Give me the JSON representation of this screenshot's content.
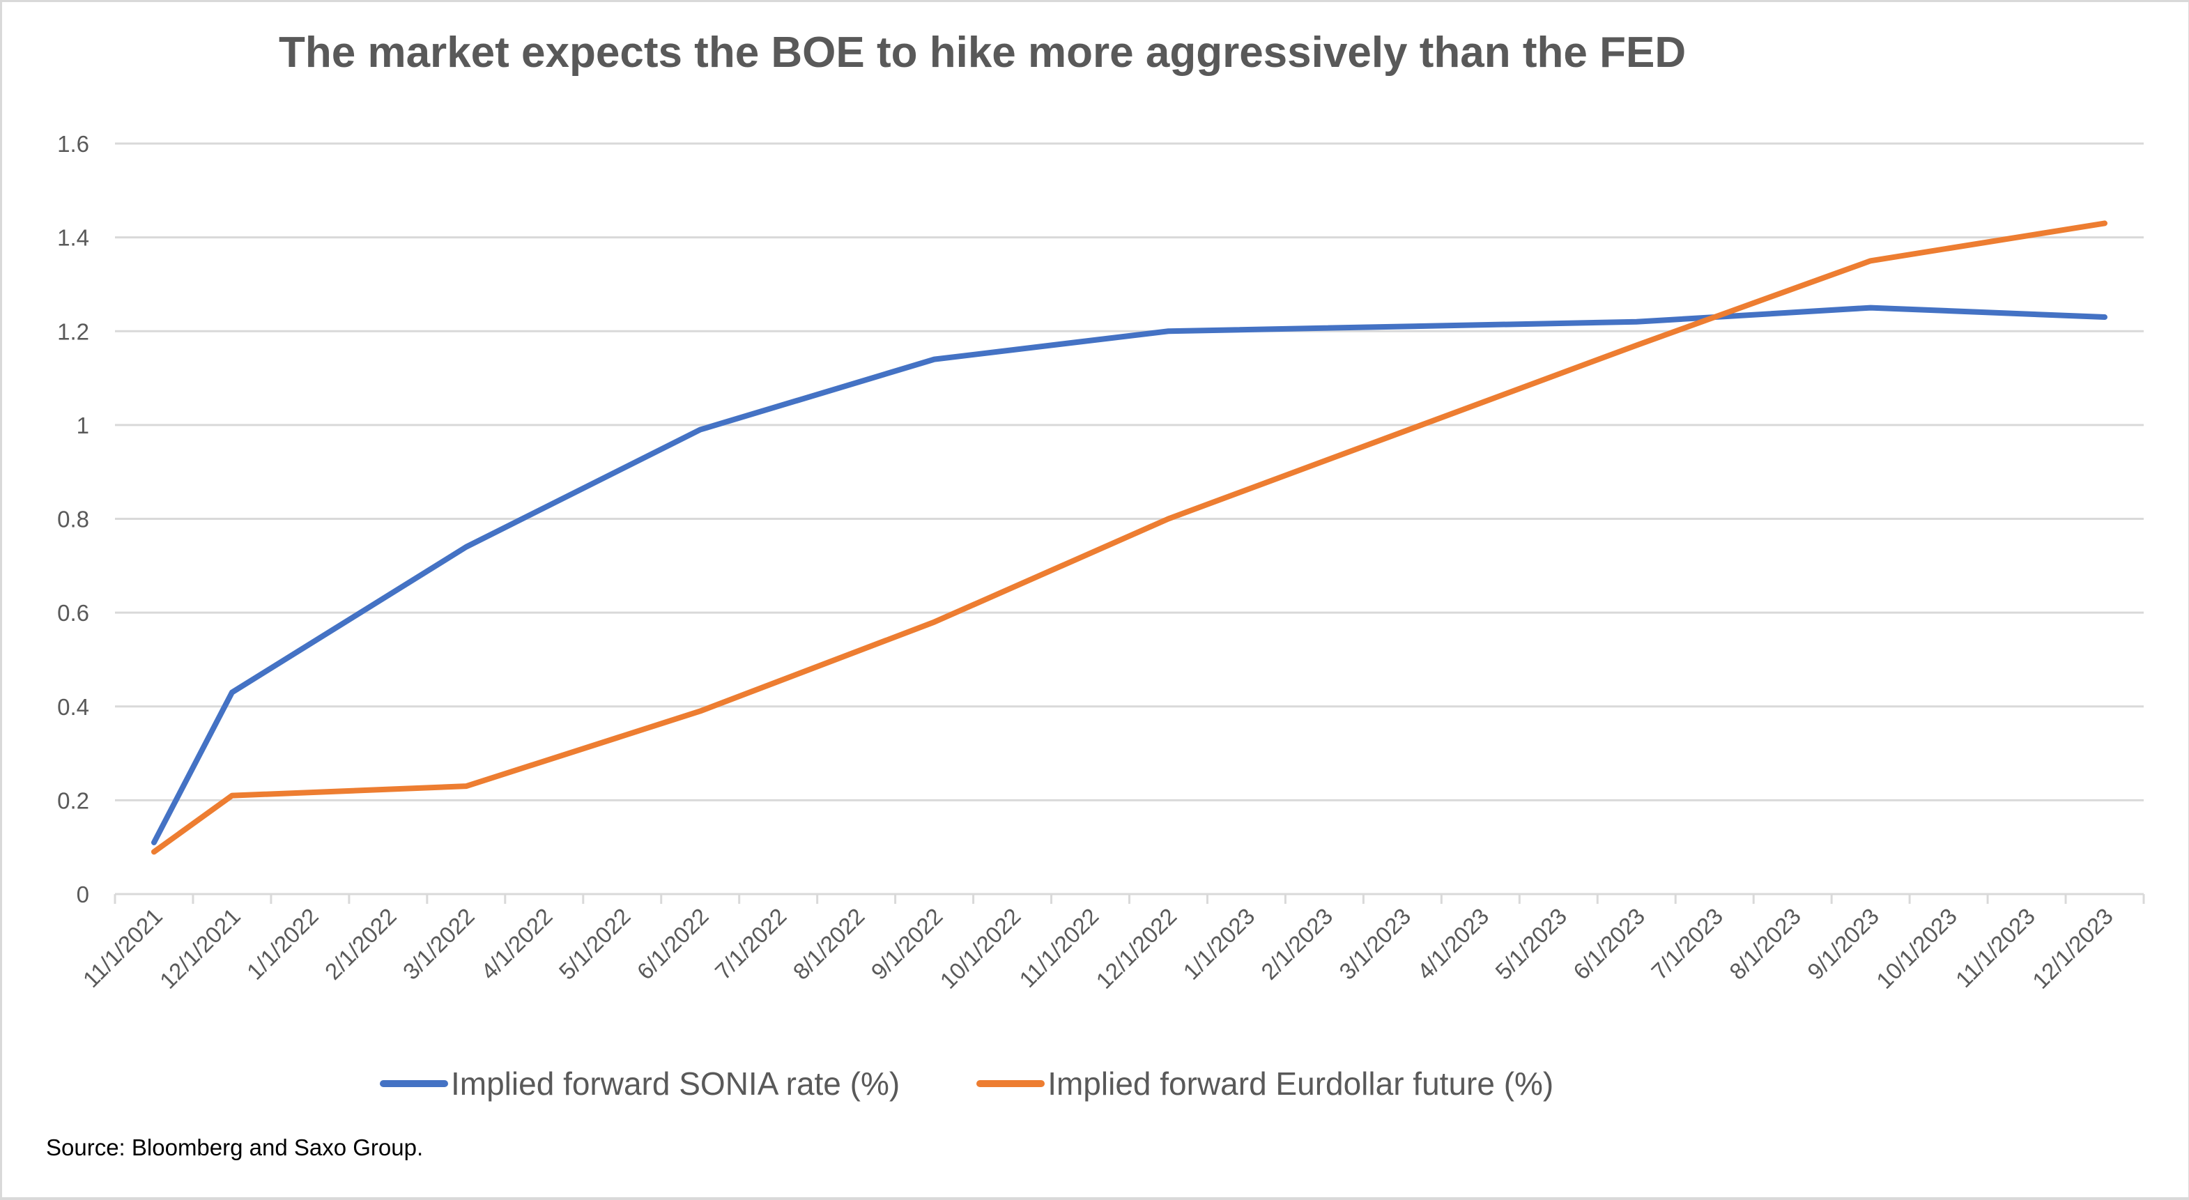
{
  "chart_data": {
    "type": "line",
    "title": "The market expects the BOE to hike more aggressively than the FED",
    "xlabel": "",
    "ylabel": "",
    "ylim": [
      0,
      1.6
    ],
    "yticks": [
      "0",
      "0.2",
      "0.4",
      "0.6",
      "0.8",
      "1",
      "1.2",
      "1.4",
      "1.6"
    ],
    "ytick_values": [
      0,
      0.2,
      0.4,
      0.6,
      0.8,
      1,
      1.2,
      1.4,
      1.6
    ],
    "grid": true,
    "legend_position": "bottom",
    "categories": [
      "11/1/2021",
      "12/1/2021",
      "1/1/2022",
      "2/1/2022",
      "3/1/2022",
      "4/1/2022",
      "5/1/2022",
      "6/1/2022",
      "7/1/2022",
      "8/1/2022",
      "9/1/2022",
      "10/1/2022",
      "11/1/2022",
      "12/1/2022",
      "1/1/2023",
      "2/1/2023",
      "3/1/2023",
      "4/1/2023",
      "5/1/2023",
      "6/1/2023",
      "7/1/2023",
      "8/1/2023",
      "9/1/2023",
      "10/1/2023",
      "11/1/2023",
      "12/1/2023"
    ],
    "series": [
      {
        "name": "Implied forward SONIA rate (%)",
        "color": "#4472C4",
        "values": [
          0.11,
          0.43,
          null,
          null,
          0.74,
          null,
          null,
          0.99,
          null,
          null,
          1.14,
          null,
          null,
          1.2,
          null,
          null,
          null,
          null,
          null,
          1.22,
          null,
          null,
          1.25,
          null,
          null,
          1.23
        ]
      },
      {
        "name": "Implied forward Eurdollar future (%)",
        "color": "#ED7D31",
        "values": [
          0.09,
          0.21,
          null,
          null,
          0.23,
          null,
          null,
          0.39,
          null,
          null,
          0.58,
          null,
          null,
          0.8,
          null,
          null,
          null,
          null,
          null,
          1.17,
          null,
          null,
          1.35,
          null,
          null,
          1.43
        ]
      }
    ],
    "source": "Source: Bloomberg and Saxo Group."
  }
}
